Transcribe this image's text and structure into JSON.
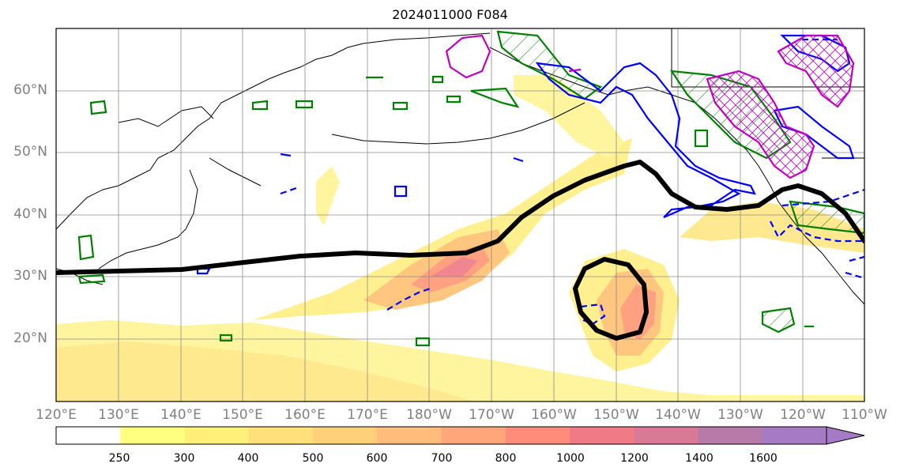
{
  "title": "2024011000 F084",
  "lat_labels": [
    "60°N",
    "50°N",
    "40°N",
    "30°N",
    "20°N"
  ],
  "lon_labels": [
    "120°E",
    "130°E",
    "140°E",
    "150°E",
    "160°E",
    "170°E",
    "180°W",
    "170°W",
    "160°W",
    "150°W",
    "140°W",
    "130°W",
    "120°W",
    "110°W"
  ],
  "colorbar": {
    "ticks": [
      "250",
      "300",
      "400",
      "500",
      "600",
      "700",
      "800",
      "1000",
      "1200",
      "1400",
      "1600"
    ],
    "colors": [
      "#ffffff",
      "#ffff80",
      "#fff07a",
      "#ffe07a",
      "#ffd07a",
      "#ffbc7a",
      "#ffa67a",
      "#ff8c7a",
      "#f07a86",
      "#d87a96",
      "#b87aa8",
      "#a67ac4"
    ]
  },
  "legend_colors": {
    "trough_line": "#000000",
    "blue_contour": "#0000ff",
    "green_contour": "#008000",
    "magenta_contour": "#c000c0"
  }
}
